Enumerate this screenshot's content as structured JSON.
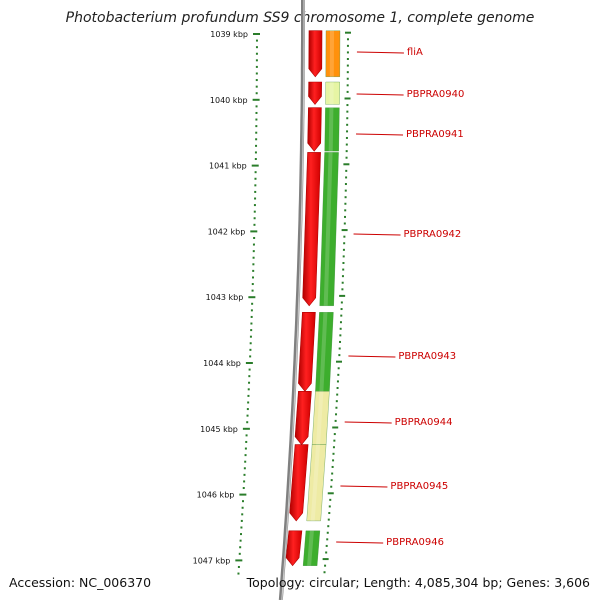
{
  "title": "Photobacterium profundum SS9 chromosome 1, complete genome",
  "footer": {
    "accession": "Accession: NC_006370",
    "summary": "Topology: circular; Length: 4,085,304 bp; Genes: 3,606"
  },
  "axis_labels": [
    "1039 kbp",
    "1040 kbp",
    "1041 kbp",
    "1042 kbp",
    "1043 kbp",
    "1044 kbp",
    "1045 kbp",
    "1046 kbp",
    "1047 kbp"
  ],
  "genes": [
    {
      "name": "fliA",
      "start": 1038.95,
      "end": 1039.65,
      "strand": "forward",
      "colour": "#ff8c00"
    },
    {
      "name": "PBPRA0940",
      "start": 1039.73,
      "end": 1040.07,
      "strand": "forward",
      "colour": "#e5f5a0"
    },
    {
      "name": "PBPRA0941",
      "start": 1040.12,
      "end": 1040.78,
      "strand": "forward",
      "colour": "#33aa22"
    },
    {
      "name": "PBPRA0942",
      "start": 1040.8,
      "end": 1043.13,
      "strand": "forward",
      "colour": "#33aa22"
    },
    {
      "name": "PBPRA0943",
      "start": 1043.23,
      "end": 1044.43,
      "strand": "forward",
      "colour": "#33aa22"
    },
    {
      "name": "PBPRA0944",
      "start": 1044.43,
      "end": 1045.24,
      "strand": "forward",
      "colour": "#eeeaa0"
    },
    {
      "name": "PBPRA0945",
      "start": 1045.24,
      "end": 1046.4,
      "strand": "forward",
      "colour": "#eeeaa0"
    },
    {
      "name": "PBPRA0946",
      "start": 1046.55,
      "end": 1047.08,
      "strand": "forward",
      "colour": "#33aa22"
    }
  ],
  "colors": {
    "cds": "#ff0000",
    "backbone": "#808080",
    "tick": "#2a7d2a",
    "label": "#cc0000"
  }
}
